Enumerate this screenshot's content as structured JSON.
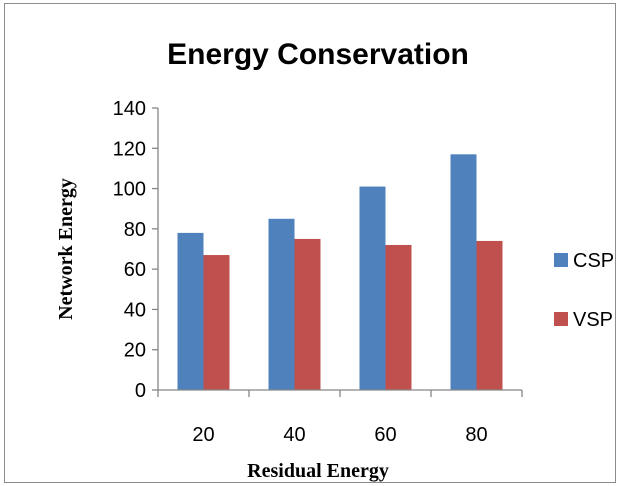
{
  "chart_data": {
    "type": "bar",
    "title": "Energy Conservation",
    "xlabel": "Residual Energy",
    "ylabel": "Network Energy",
    "categories": [
      "20",
      "40",
      "60",
      "80"
    ],
    "series": [
      {
        "name": "CSP",
        "color": "#4f81bd",
        "values": [
          78,
          85,
          101,
          117
        ]
      },
      {
        "name": "VSP",
        "color": "#c0504d",
        "values": [
          67,
          75,
          72,
          74
        ]
      }
    ],
    "ylim": [
      0,
      140
    ],
    "yticks": [
      "0",
      "20",
      "40",
      "60",
      "80",
      "100",
      "120",
      "140"
    ],
    "grid": false,
    "legend": "right"
  }
}
